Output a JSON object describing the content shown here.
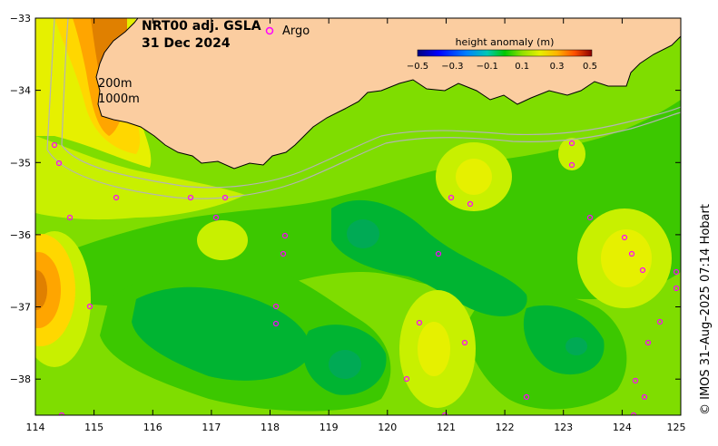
{
  "title": {
    "product": "NRT00 adj. GSLA",
    "date": "31 Dec 2024"
  },
  "isobaths": {
    "label_200": "200m",
    "label_1000": "1000m"
  },
  "legend": {
    "argo_label": "Argo",
    "argo_color": "#ff00ff",
    "colorbar_title": "height anomaly (m)",
    "colorbar_ticks": [
      "−0.5",
      "−0.3",
      "−0.1",
      "0.1",
      "0.3",
      "0.5"
    ]
  },
  "axes": {
    "x_ticks": [
      "114",
      "115",
      "116",
      "117",
      "118",
      "119",
      "120",
      "121",
      "122",
      "123",
      "124",
      "125"
    ],
    "y_ticks": [
      "−33",
      "−34",
      "−35",
      "−36",
      "−37",
      "−38"
    ]
  },
  "credit": "© IMOS 31–Aug–2025 07:14 Hobart",
  "colors": {
    "land": "#fbcda0",
    "sea_base": "#7fdd00",
    "isobath": "#b4b4b4"
  }
}
